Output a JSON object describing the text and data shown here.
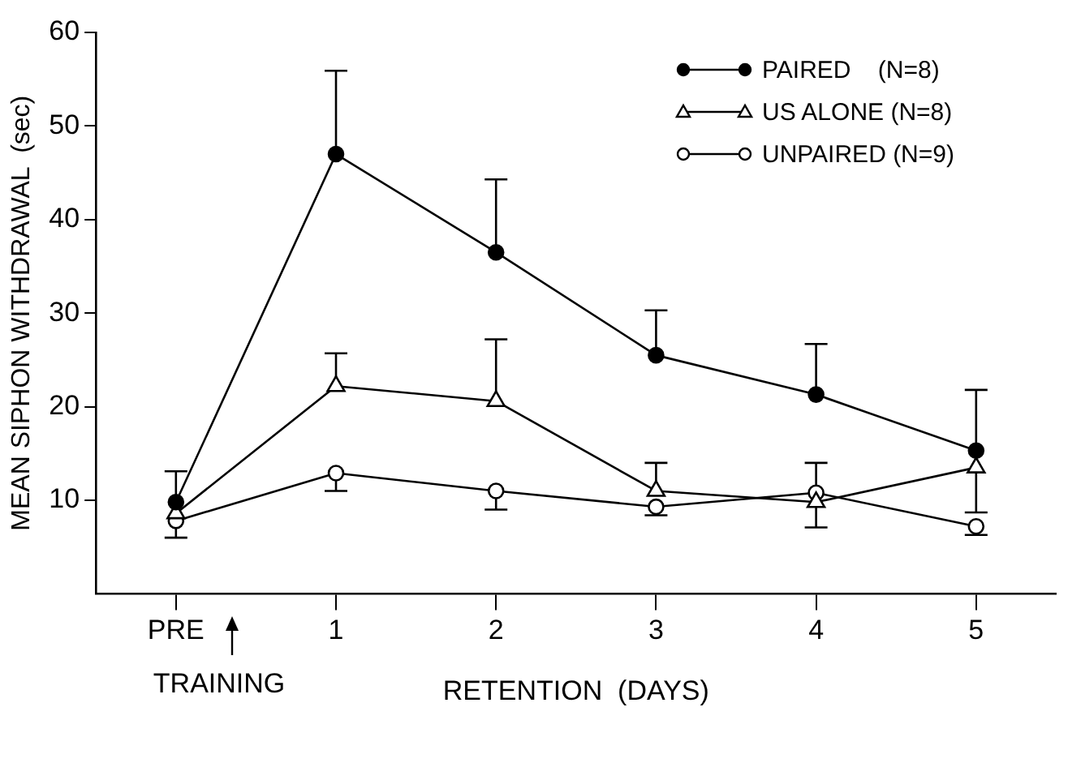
{
  "chart_data": {
    "type": "line",
    "xlabel": "RETENTION  (DAYS)",
    "ylabel": "MEAN SIPHON WITHDRAWAL  (sec)",
    "categories": [
      "PRE",
      "1",
      "2",
      "3",
      "4",
      "5"
    ],
    "ylim": [
      0,
      60
    ],
    "yticks": [
      10,
      20,
      30,
      40,
      50,
      60
    ],
    "grid": false,
    "legend": "top right",
    "line_style": "solid",
    "annotations": [
      "TRAINING"
    ],
    "series": [
      {
        "name": "PAIRED    (N=8)",
        "color": "#000000",
        "marker": "circle",
        "values": [
          9.8,
          47.0,
          36.5,
          25.5,
          21.3,
          15.3
        ],
        "errors": [
          [
            9.8,
            13.1
          ],
          [
            47.0,
            55.9
          ],
          [
            36.5,
            44.3
          ],
          [
            25.5,
            30.3
          ],
          [
            21.3,
            26.7
          ],
          [
            15.3,
            21.8
          ]
        ]
      },
      {
        "name": "US ALONE (N=8)",
        "color": "#000000",
        "marker": "triangle",
        "values": [
          8.6,
          22.2,
          20.6,
          11.0,
          9.8,
          13.5
        ],
        "errors": [
          null,
          [
            22.2,
            25.7
          ],
          [
            20.6,
            27.2
          ],
          [
            11.0,
            14.0
          ],
          [
            9.8,
            14.0
          ],
          [
            8.7,
            13.5
          ]
        ]
      },
      {
        "name": "UNPAIRED (N=9)",
        "color": "#000000",
        "marker": "circle",
        "values": [
          7.8,
          12.9,
          11.0,
          9.3,
          10.8,
          7.2
        ],
        "errors": [
          [
            6.0,
            7.8
          ],
          [
            11.0,
            12.9
          ],
          [
            9.0,
            11.0
          ],
          [
            8.4,
            9.3
          ],
          [
            7.1,
            10.8
          ],
          [
            6.3,
            7.2
          ]
        ]
      }
    ]
  }
}
